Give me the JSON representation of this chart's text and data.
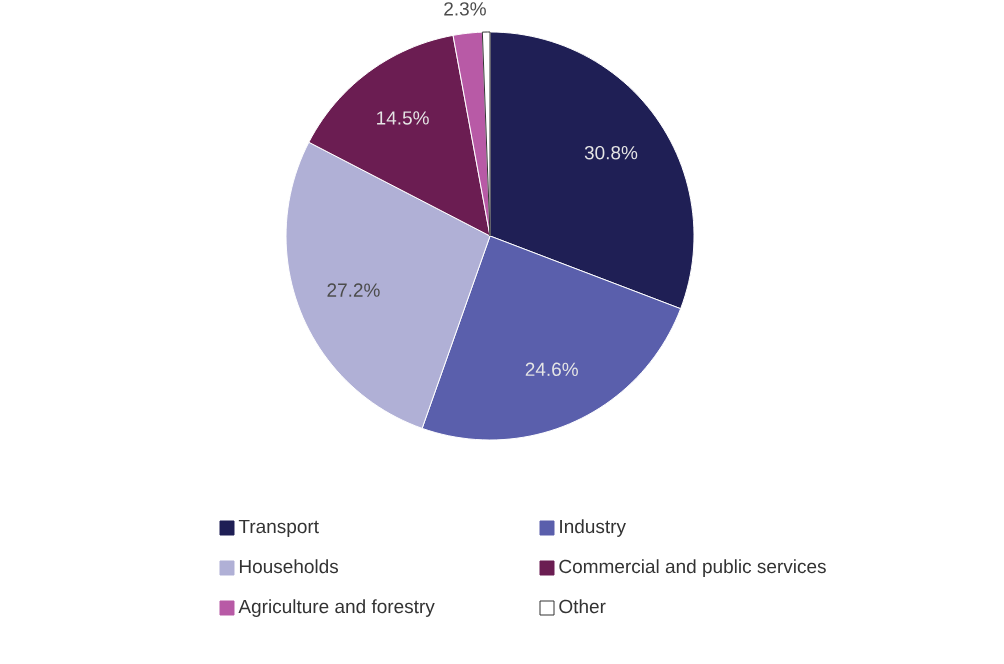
{
  "chart_data": {
    "type": "pie",
    "categories": [
      "Transport",
      "Industry",
      "Households",
      "Commercial and public services",
      "Agriculture and forestry",
      "Other"
    ],
    "values": [
      30.8,
      24.6,
      27.2,
      14.5,
      2.3,
      0.6
    ],
    "colors": [
      "#1f1f55",
      "#5a5fac",
      "#b0b0d6",
      "#6b1d52",
      "#b85aa6",
      "#ffffff"
    ],
    "value_labels": [
      "30.8%",
      "24.6%",
      "27.2%",
      "14.5%",
      "2.3%",
      null
    ],
    "legend": "bottom"
  }
}
